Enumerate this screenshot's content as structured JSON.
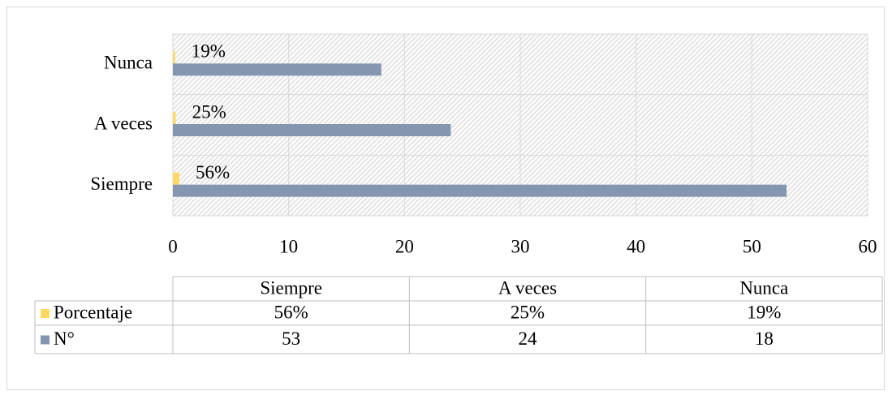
{
  "chart_data": {
    "type": "bar",
    "orientation": "horizontal",
    "categories": [
      "Siempre",
      "A veces",
      "Nunca"
    ],
    "series": [
      {
        "name": "Porcentaje",
        "color": "#ffd966",
        "values": [
          0.56,
          0.25,
          0.19
        ],
        "value_labels": [
          "56%",
          "25%",
          "19%"
        ]
      },
      {
        "name": "N°",
        "color": "#8496b0",
        "values": [
          53,
          24,
          18
        ]
      }
    ],
    "xlim": [
      0,
      60
    ],
    "xticks": [
      0,
      10,
      20,
      30,
      40,
      50,
      60
    ],
    "grid": true,
    "data_table": true
  }
}
